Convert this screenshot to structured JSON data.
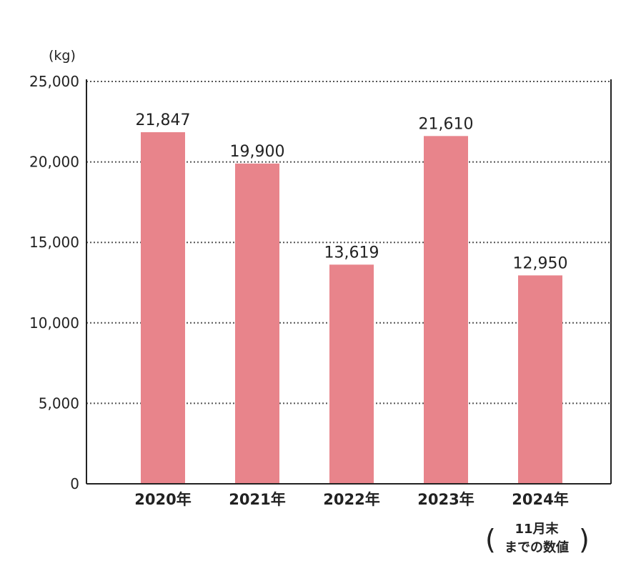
{
  "chart_data": {
    "type": "bar",
    "y_unit": "(kg)",
    "categories": [
      "2020年",
      "2021年",
      "2022年",
      "2023年",
      "2024年"
    ],
    "values": [
      21847,
      19900,
      13619,
      21610,
      12950
    ],
    "value_labels": [
      "21,847",
      "19,900",
      "13,619",
      "21,610",
      "12,950"
    ],
    "ylim": [
      0,
      25000
    ],
    "yticks": [
      0,
      5000,
      10000,
      15000,
      20000,
      25000
    ],
    "ytick_labels": [
      "0",
      "5,000",
      "10,000",
      "15,000",
      "20,000",
      "25,000"
    ],
    "grid": true,
    "note_last_category": [
      "11月末",
      "までの数値"
    ],
    "colors": {
      "bar": "#e8848b",
      "axis": "#222222",
      "grid": "#555555"
    }
  }
}
